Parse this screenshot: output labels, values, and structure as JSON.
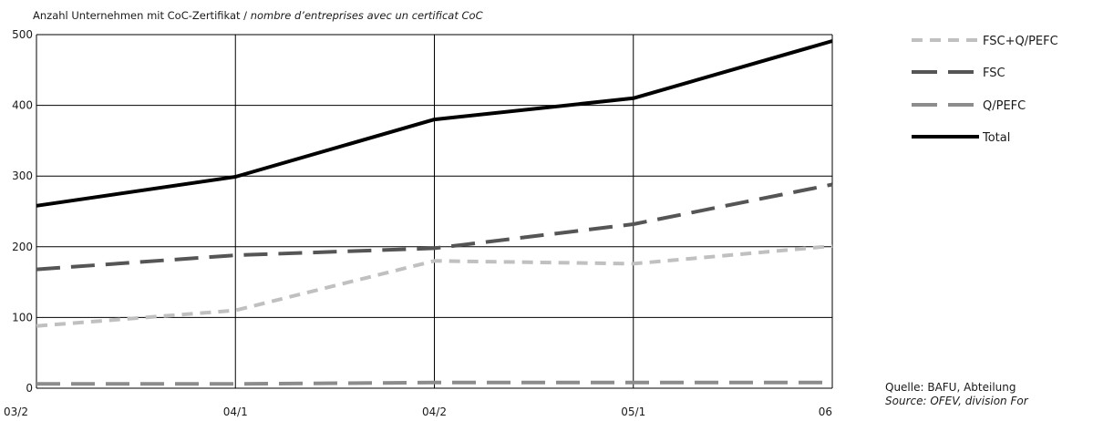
{
  "chart_data": {
    "type": "line",
    "title_de": "Anzahl Unternehmen mit CoC-Zertifikat / ",
    "title_fr": "nombre d’entreprises avec un certificat CoC",
    "categories": [
      "03/2",
      "04/1",
      "04/2",
      "05/1",
      "06"
    ],
    "ylim": [
      0,
      500
    ],
    "yticks": [
      "0",
      "100",
      "200",
      "300",
      "400",
      "500"
    ],
    "grid": true,
    "legend_position": "right",
    "series": [
      {
        "name": "FSC+Q/PEFC",
        "values": [
          88,
          110,
          180,
          176,
          201
        ],
        "color": "#c0c0c0",
        "dash": "short"
      },
      {
        "name": "FSC",
        "values": [
          168,
          188,
          198,
          232,
          288
        ],
        "color": "#555555",
        "dash": "long"
      },
      {
        "name": "Q/PEFC",
        "values": [
          6,
          6,
          8,
          8,
          8
        ],
        "color": "#8c8c8c",
        "dash": "long"
      },
      {
        "name": "Total",
        "values": [
          258,
          299,
          380,
          410,
          491
        ],
        "color": "#000000",
        "dash": "solid"
      }
    ],
    "source_de": "Quelle:  BAFU, Abteilung",
    "source_fr": "Source: OFEV, division For"
  }
}
